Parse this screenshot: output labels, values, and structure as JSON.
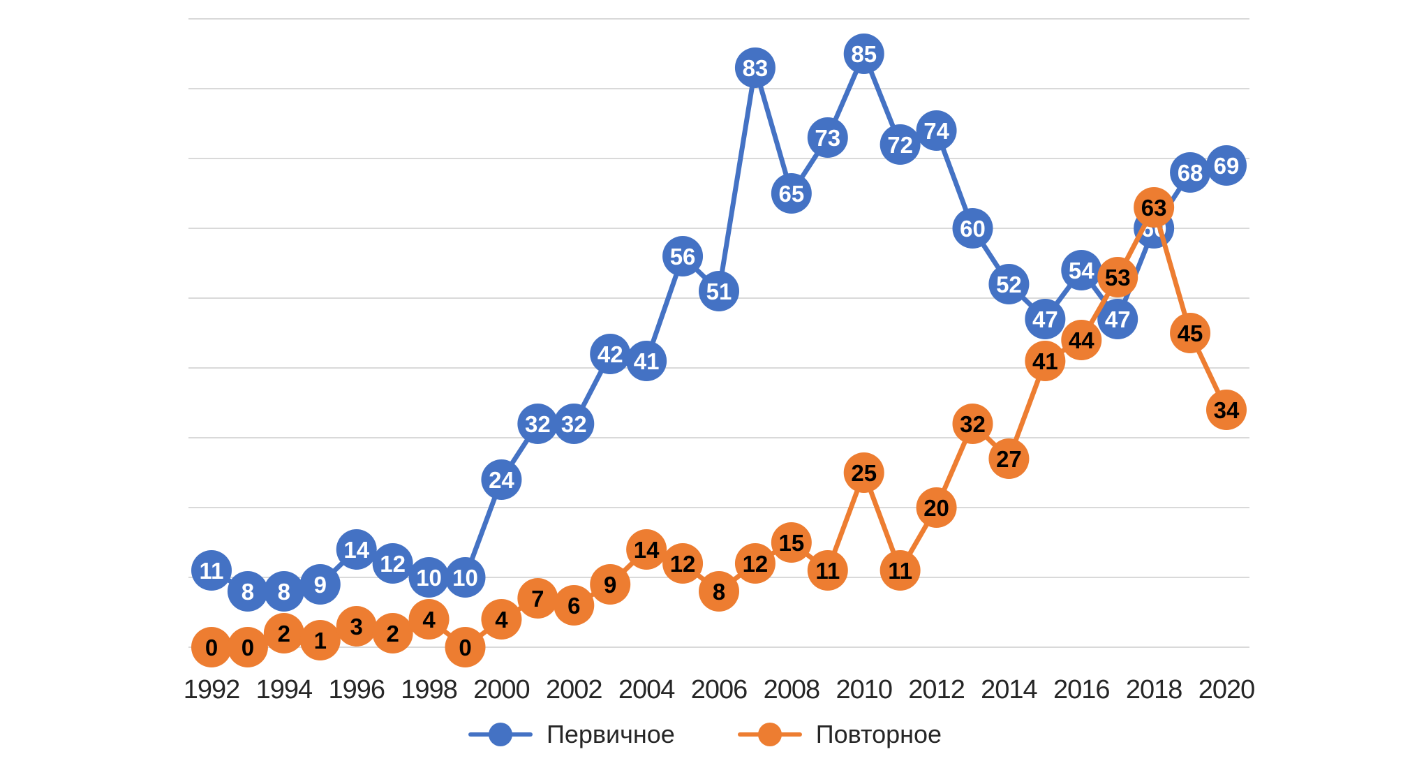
{
  "chart_data": {
    "type": "line",
    "title": "",
    "xlabel": "",
    "ylabel": "",
    "x": [
      1992,
      1993,
      1994,
      1995,
      1996,
      1997,
      1998,
      1999,
      2000,
      2001,
      2002,
      2003,
      2004,
      2005,
      2006,
      2007,
      2008,
      2009,
      2010,
      2011,
      2012,
      2013,
      2014,
      2015,
      2016,
      2017,
      2018,
      2019,
      2020
    ],
    "x_tick_labels": [
      "1992",
      "1994",
      "1996",
      "1998",
      "2000",
      "2002",
      "2004",
      "2006",
      "2008",
      "2010",
      "2012",
      "2014",
      "2016",
      "2018",
      "2020"
    ],
    "series": [
      {
        "name": "Первичное",
        "color": "#4472C4",
        "label_color": "#FFFFFF",
        "values": [
          11,
          8,
          8,
          9,
          14,
          12,
          10,
          10,
          24,
          32,
          32,
          42,
          41,
          56,
          51,
          83,
          65,
          73,
          85,
          72,
          74,
          60,
          52,
          47,
          54,
          47,
          60,
          68,
          69
        ]
      },
      {
        "name": "Повторное",
        "color": "#ED7D31",
        "label_color": "#000000",
        "values": [
          0,
          0,
          2,
          1,
          3,
          2,
          4,
          0,
          4,
          7,
          6,
          9,
          14,
          12,
          8,
          12,
          15,
          11,
          25,
          11,
          20,
          32,
          27,
          41,
          44,
          53,
          63,
          45,
          34
        ]
      }
    ],
    "ylim": [
      0,
      90
    ],
    "grid_step": 10,
    "grid_color": "#D9D9D9",
    "grid": "horizontal-only",
    "y_tick_labels_visible": false,
    "data_labels": "inside-markers",
    "legend_position": "bottom",
    "background": "#FFFFFF"
  }
}
